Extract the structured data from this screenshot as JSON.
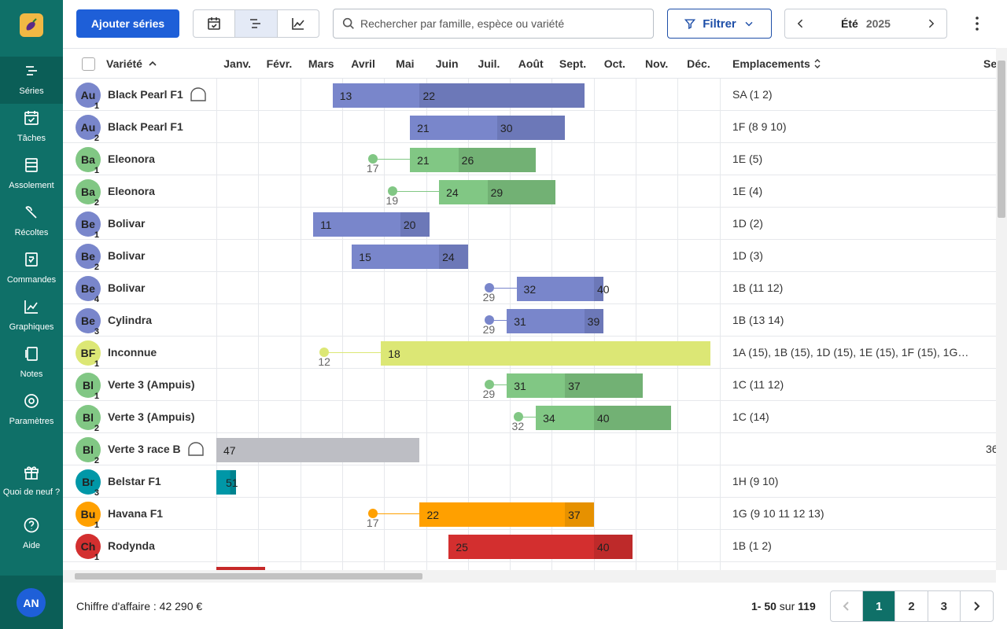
{
  "sidebar": {
    "items": [
      {
        "label": "Séries",
        "icon": "series-icon",
        "active": true
      },
      {
        "label": "Tâches",
        "icon": "tasks-icon"
      },
      {
        "label": "Assolement",
        "icon": "crop-plan-icon"
      },
      {
        "label": "Récoltes",
        "icon": "harvest-icon"
      },
      {
        "label": "Commandes",
        "icon": "orders-icon"
      },
      {
        "label": "Graphiques",
        "icon": "charts-icon"
      },
      {
        "label": "Notes",
        "icon": "notes-icon"
      },
      {
        "label": "Paramètres",
        "icon": "settings-icon"
      },
      {
        "label": "Quoi de neuf ?",
        "icon": "gift-icon"
      },
      {
        "label": "Aide",
        "icon": "help-icon"
      }
    ],
    "avatar": "AN"
  },
  "toolbar": {
    "add_label": "Ajouter séries",
    "search_placeholder": "Rechercher par famille, espèce ou variété",
    "filter_label": "Filtrer",
    "season": "Été",
    "year": "2025"
  },
  "table": {
    "variety_header": "Variété",
    "months": [
      "Janv.",
      "Févr.",
      "Mars",
      "Avril",
      "Mai",
      "Juin",
      "Juil.",
      "Août",
      "Sept.",
      "Oct.",
      "Nov.",
      "Déc."
    ],
    "locations_header": "Emplacements",
    "extra_header": "Se",
    "rows": [
      {
        "abbr": "Au",
        "num": "1",
        "color": "#7986cb",
        "name": "Black Pearl F1",
        "greenhouse": true,
        "loc": "SA (1 2)",
        "bar": {
          "start": 13,
          "split": 22,
          "end": 39,
          "c1": "#7986cb",
          "c2": "#6c78b8"
        }
      },
      {
        "abbr": "Au",
        "num": "2",
        "color": "#7986cb",
        "name": "Black Pearl F1",
        "loc": "1F (8 9 10)",
        "bar": {
          "start": 21,
          "split": 30,
          "end": 37,
          "c1": "#7986cb",
          "c2": "#6c78b8"
        }
      },
      {
        "abbr": "Ba",
        "num": "1",
        "color": "#81c784",
        "name": "Eleonora",
        "loc": "1E (5)",
        "sow": 17,
        "bar": {
          "start": 21,
          "split": 26,
          "end": 34,
          "c1": "#81c784",
          "c2": "#72b174"
        }
      },
      {
        "abbr": "Ba",
        "num": "2",
        "color": "#81c784",
        "name": "Eleonora",
        "loc": "1E (4)",
        "sow": 19,
        "bar": {
          "start": 24,
          "split": 29,
          "end": 36,
          "c1": "#81c784",
          "c2": "#72b174"
        }
      },
      {
        "abbr": "Be",
        "num": "1",
        "color": "#7986cb",
        "name": "Bolivar",
        "loc": "1D (2)",
        "bar": {
          "start": 11,
          "split": 20,
          "end": 23,
          "c1": "#7986cb",
          "c2": "#6c78b8"
        }
      },
      {
        "abbr": "Be",
        "num": "2",
        "color": "#7986cb",
        "name": "Bolivar",
        "loc": "1D (3)",
        "bar": {
          "start": 15,
          "split": 24,
          "end": 27,
          "c1": "#7986cb",
          "c2": "#6c78b8"
        }
      },
      {
        "abbr": "Be",
        "num": "4",
        "color": "#7986cb",
        "name": "Bolivar",
        "loc": "1B (11 12)",
        "sow": 29,
        "bar": {
          "start": 32,
          "split": 40,
          "end": 41,
          "c1": "#7986cb",
          "c2": "#6c78b8"
        }
      },
      {
        "abbr": "Be",
        "num": "3",
        "color": "#7986cb",
        "name": "Cylindra",
        "loc": "1B (13 14)",
        "sow": 29,
        "bar": {
          "start": 31,
          "split": 39,
          "end": 41,
          "c1": "#7986cb",
          "c2": "#6c78b8"
        }
      },
      {
        "abbr": "BF",
        "num": "1",
        "color": "#dce775",
        "name": "Inconnue",
        "loc": "1A (15), 1B (15), 1D (15), 1E (15), 1F (15), 1G…",
        "sow": 12,
        "bar": {
          "start": 18,
          "split": null,
          "end": 52,
          "c1": "#dce775",
          "c2": "#dce775"
        }
      },
      {
        "abbr": "Bl",
        "num": "1",
        "color": "#81c784",
        "name": "Verte 3 (Ampuis)",
        "loc": "1C (11 12)",
        "sow": 29,
        "bar": {
          "start": 31,
          "split": 37,
          "end": 45,
          "c1": "#81c784",
          "c2": "#72b174"
        }
      },
      {
        "abbr": "Bl",
        "num": "2",
        "color": "#81c784",
        "name": "Verte 3 (Ampuis)",
        "loc": "1C (14)",
        "sow": 32,
        "bar": {
          "start": 34,
          "split": 40,
          "end": 48,
          "c1": "#81c784",
          "c2": "#72b174"
        }
      },
      {
        "abbr": "Bl",
        "num": "2",
        "color": "#81c784",
        "name": "Verte 3 race B",
        "greenhouse": true,
        "loc": "",
        "extra": "36",
        "bar": {
          "start": 47,
          "split": null,
          "end": 68,
          "c1": "#bdbec4",
          "c2": "#bdbec4",
          "wrap": true
        }
      },
      {
        "abbr": "Br",
        "num": "3",
        "color": "#0097a7",
        "name": "Belstar F1",
        "loc": "1H (9 10)",
        "bar": {
          "start": 51,
          "split": null,
          "end": 53,
          "c1": "#0097a7",
          "c2": "#0097a7",
          "wrap": true
        }
      },
      {
        "abbr": "Bu",
        "num": "1",
        "color": "#ffa000",
        "name": "Havana F1",
        "loc": "1G (9 10 11 12 13)",
        "sow": 17,
        "bar": {
          "start": 22,
          "split": 37,
          "end": 40,
          "c1": "#ffa000",
          "c2": "#e69100"
        }
      },
      {
        "abbr": "Ch",
        "num": "1",
        "color": "#d32f2f",
        "name": "Rodynda",
        "loc": "1B (1 2)",
        "bar": {
          "start": 25,
          "split": 40,
          "end": 44,
          "c1": "#d32f2f",
          "c2": "#be2a2a"
        }
      },
      {
        "abbr": "",
        "num": "",
        "color": "#d32f2f",
        "name": "",
        "loc": "",
        "bar": {
          "start": 1,
          "split": null,
          "end": 6,
          "c1": "#c62828",
          "c2": "#c62828",
          "nolabel": true
        }
      }
    ]
  },
  "footer": {
    "revenue": "Chiffre d'affaire : 42 290 €",
    "range_prefix": "1- 50",
    "range_sep": " sur ",
    "range_total": "119",
    "pages": [
      "1",
      "2",
      "3"
    ]
  }
}
